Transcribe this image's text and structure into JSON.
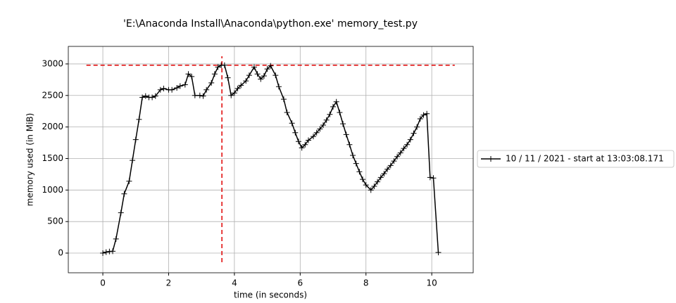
{
  "chart_data": {
    "type": "line",
    "title": "'E:\\Anaconda Install\\Anaconda\\python.exe' memory_test.py",
    "x_label": "time (in seconds)",
    "y_label": "memory used (in MiB)",
    "x": [
      0.0,
      0.1,
      0.2,
      0.3,
      0.4,
      0.55,
      0.65,
      0.8,
      0.9,
      1.0,
      1.1,
      1.2,
      1.3,
      1.4,
      1.5,
      1.6,
      1.75,
      1.85,
      2.0,
      2.1,
      2.25,
      2.35,
      2.5,
      2.6,
      2.7,
      2.8,
      2.95,
      3.05,
      3.15,
      3.3,
      3.4,
      3.5,
      3.6,
      3.7,
      3.8,
      3.9,
      4.0,
      4.1,
      4.2,
      4.35,
      4.45,
      4.6,
      4.7,
      4.8,
      4.9,
      5.0,
      5.1,
      5.25,
      5.35,
      5.5,
      5.6,
      5.75,
      5.85,
      5.95,
      6.05,
      6.15,
      6.25,
      6.4,
      6.5,
      6.6,
      6.7,
      6.8,
      6.9,
      7.0,
      7.1,
      7.2,
      7.3,
      7.4,
      7.5,
      7.6,
      7.7,
      7.8,
      7.9,
      8.0,
      8.15,
      8.25,
      8.35,
      8.45,
      8.55,
      8.65,
      8.75,
      8.85,
      8.95,
      9.05,
      9.15,
      9.25,
      9.35,
      9.45,
      9.55,
      9.65,
      9.75,
      9.85,
      9.95,
      10.05,
      10.2
    ],
    "series": [
      {
        "name": "10 / 11 / 2021 - start at 13:03:08.171",
        "color": "#000000",
        "values": [
          0,
          15,
          25,
          30,
          225,
          640,
          940,
          1140,
          1470,
          1800,
          2120,
          2470,
          2490,
          2470,
          2470,
          2490,
          2590,
          2610,
          2590,
          2590,
          2620,
          2650,
          2670,
          2840,
          2800,
          2500,
          2500,
          2490,
          2590,
          2700,
          2840,
          2950,
          2980,
          2980,
          2780,
          2500,
          2540,
          2610,
          2660,
          2730,
          2820,
          2950,
          2840,
          2760,
          2810,
          2920,
          2970,
          2820,
          2640,
          2440,
          2230,
          2060,
          1910,
          1770,
          1670,
          1720,
          1790,
          1850,
          1910,
          1970,
          2030,
          2110,
          2200,
          2320,
          2400,
          2230,
          2050,
          1880,
          1720,
          1550,
          1420,
          1290,
          1170,
          1080,
          1000,
          1060,
          1130,
          1200,
          1260,
          1330,
          1390,
          1460,
          1530,
          1590,
          1660,
          1720,
          1800,
          1900,
          2000,
          2130,
          2190,
          2210,
          1200,
          1190,
          10
        ]
      }
    ],
    "hlines": [
      {
        "y": 2980,
        "xmin": -0.5,
        "xmax": 10.7,
        "color": "#e00000"
      }
    ],
    "vlines": [
      {
        "x": 3.62,
        "ymin": -145,
        "ymax": 3122,
        "color": "#e00000"
      }
    ],
    "xlim": [
      -1.05,
      11.26
    ],
    "ylim": [
      -312,
      3278
    ],
    "xticks": [
      0,
      2,
      4,
      6,
      8,
      10
    ],
    "yticks": [
      0,
      500,
      1000,
      1500,
      2000,
      2500,
      3000
    ],
    "grid": true,
    "legend": "outside right"
  }
}
